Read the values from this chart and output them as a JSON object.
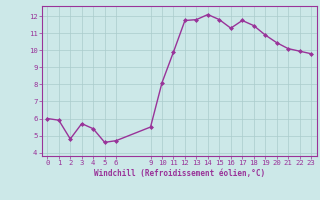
{
  "x": [
    0,
    1,
    2,
    3,
    4,
    5,
    6,
    9,
    10,
    11,
    12,
    13,
    14,
    15,
    16,
    17,
    18,
    19,
    20,
    21,
    22,
    23
  ],
  "y": [
    6.0,
    5.9,
    4.8,
    5.7,
    5.4,
    4.6,
    4.7,
    5.5,
    8.1,
    9.9,
    11.75,
    11.8,
    12.1,
    11.8,
    11.3,
    11.75,
    11.45,
    10.9,
    10.45,
    10.1,
    9.95,
    9.8
  ],
  "line_color": "#993399",
  "marker": "D",
  "marker_size": 2.0,
  "bg_color": "#cce8e8",
  "grid_color": "#aacccc",
  "xlabel": "Windchill (Refroidissement éolien,°C)",
  "xlabel_color": "#993399",
  "tick_color": "#993399",
  "ylim": [
    3.8,
    12.6
  ],
  "yticks": [
    4,
    5,
    6,
    7,
    8,
    9,
    10,
    11,
    12
  ],
  "xticks": [
    0,
    1,
    2,
    3,
    4,
    5,
    6,
    9,
    10,
    11,
    12,
    13,
    14,
    15,
    16,
    17,
    18,
    19,
    20,
    21,
    22,
    23
  ],
  "xlim": [
    -0.5,
    23.5
  ],
  "linewidth": 1.0,
  "tick_fontsize": 5.2,
  "xlabel_fontsize": 5.5
}
